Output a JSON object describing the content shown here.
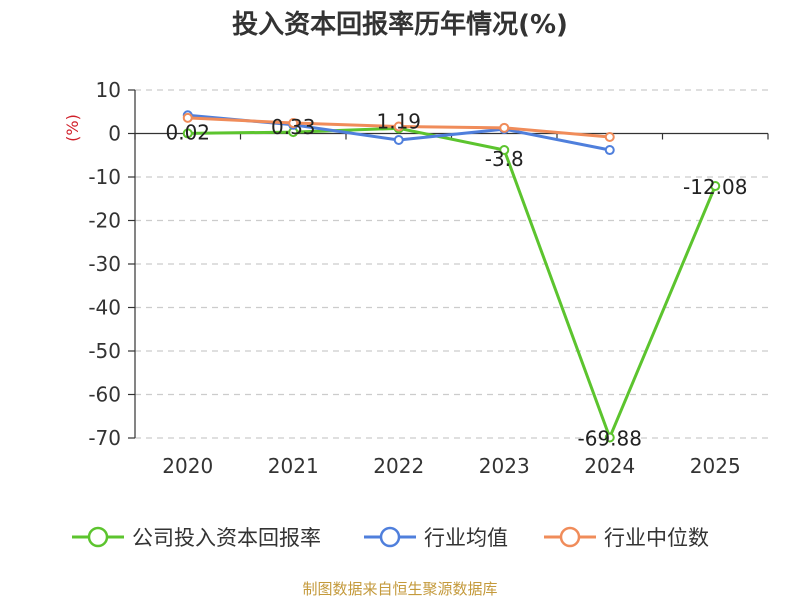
{
  "chart_data": {
    "type": "line",
    "title": "投入资本回报率历年情况(%)",
    "ylabel": "(%)",
    "categories": [
      "2020",
      "2021",
      "2022",
      "2023",
      "2024",
      "2025"
    ],
    "ylim": [
      -70,
      10
    ],
    "yticks": [
      10,
      0,
      -10,
      -20,
      -30,
      -40,
      -50,
      -60,
      -70
    ],
    "grid": true,
    "legend_position": "bottom",
    "series": [
      {
        "name": "公司投入资本回报率",
        "color": "#5cc42e",
        "values": [
          0.02,
          0.33,
          1.19,
          -3.8,
          -69.88,
          -12.08
        ],
        "labels": [
          "0.02",
          "0.33",
          "1.19",
          "-3.8",
          "-69.88",
          "-12.08"
        ]
      },
      {
        "name": "行业均值",
        "color": "#4f7fdc",
        "values": [
          4.2,
          2.0,
          -1.5,
          1.0,
          -3.8,
          null
        ]
      },
      {
        "name": "行业中位数",
        "color": "#f08c5a",
        "values": [
          3.6,
          2.4,
          1.6,
          1.3,
          -0.8,
          null
        ]
      }
    ]
  },
  "footer": "制图数据来自恒生聚源数据库"
}
